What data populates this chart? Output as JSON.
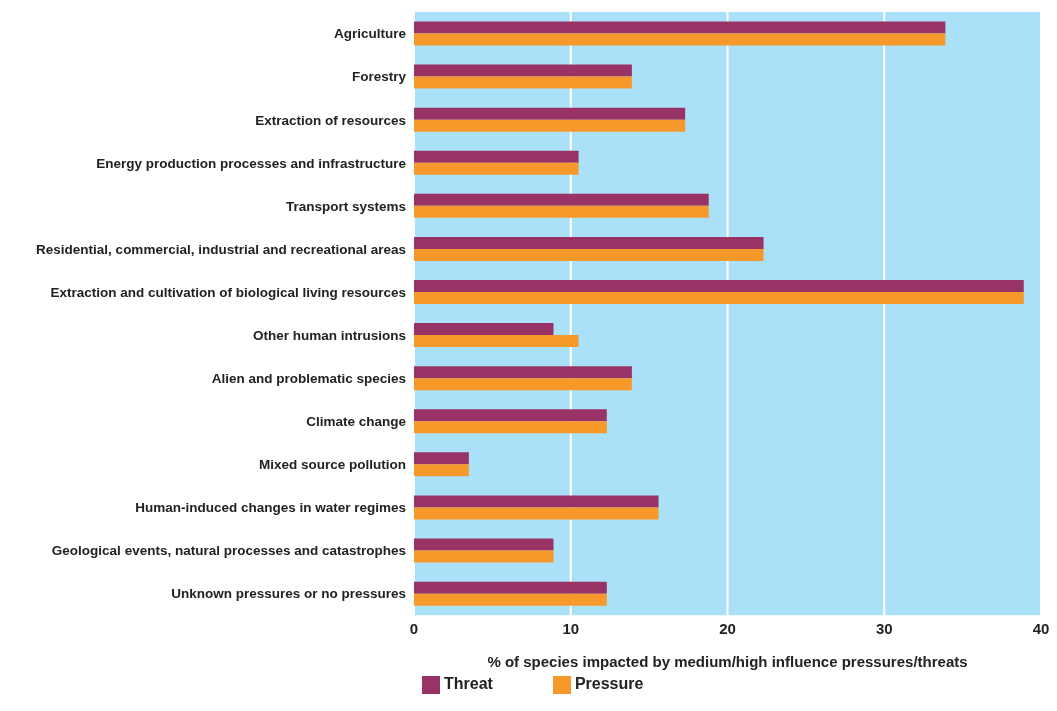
{
  "chart_data": {
    "type": "bar",
    "orientation": "horizontal",
    "xlabel": "% of species impacted by medium/high influence pressures/threats",
    "categories": [
      "Agriculture",
      "Forestry",
      "Extraction of resources",
      "Energy production processes and  infrastructure",
      "Transport systems",
      "Residential, commercial, industrial and recreational areas",
      "Extraction and cultivation of biological living resources",
      "Other human intrusions",
      "Alien and problematic species",
      "Climate change",
      "Mixed source pollution",
      "Human-induced changes in water regimes",
      "Geological events, natural processes and catastrophes",
      "Unknown pressures or no pressures"
    ],
    "series": [
      {
        "name": "Threat",
        "color": "#993366",
        "values": [
          33.9,
          13.9,
          17.3,
          10.5,
          18.8,
          22.3,
          38.9,
          8.9,
          13.9,
          12.3,
          3.5,
          15.6,
          8.9,
          12.3
        ]
      },
      {
        "name": "Pressure",
        "color": "#f7992a",
        "values": [
          33.9,
          13.9,
          17.3,
          10.5,
          18.8,
          22.3,
          38.9,
          10.5,
          13.9,
          12.3,
          3.5,
          15.6,
          8.9,
          12.3
        ]
      }
    ],
    "xlim": [
      0,
      40
    ],
    "xticks": [
      0,
      10,
      20,
      30,
      40
    ],
    "grid": "x",
    "legend": "bottom"
  }
}
